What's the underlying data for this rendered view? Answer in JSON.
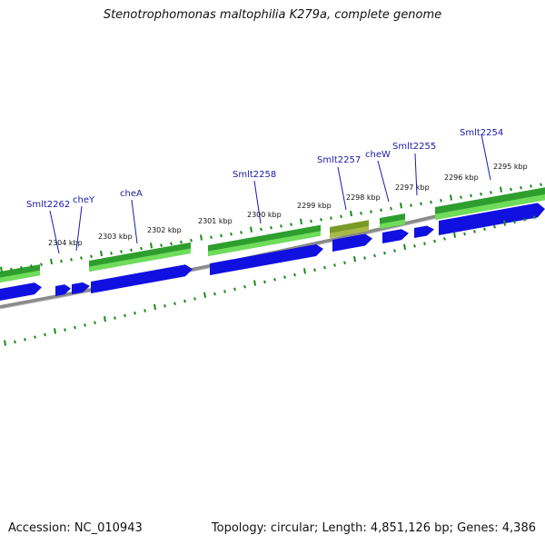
{
  "title": "Stenotrophomonas maltophilia K279a, complete genome",
  "footer": {
    "accession": "Accession: NC_010943",
    "summary": "Topology: circular; Length: 4,851,126 bp; Genes: 4,386"
  },
  "colors": {
    "cds_blue": "#1010e0",
    "gene_green": "#2e9e2e",
    "gene_highlight": "#7a9a28",
    "backbone": "#8a8a8a",
    "tick_green": "#1a8a1a",
    "label_blue": "#1a1aa8"
  },
  "kbp_labels": [
    "2295 kbp",
    "2296 kbp",
    "2297 kbp",
    "2298 kbp",
    "2299 kbp",
    "2300 kbp",
    "2301 kbp",
    "2302 kbp",
    "2303 kbp",
    "2304 kbp"
  ],
  "gene_labels": [
    "Smlt2254",
    "Smlt2255",
    "cheW",
    "Smlt2257",
    "Smlt2258",
    "cheA",
    "cheY",
    "Smlt2262"
  ]
}
